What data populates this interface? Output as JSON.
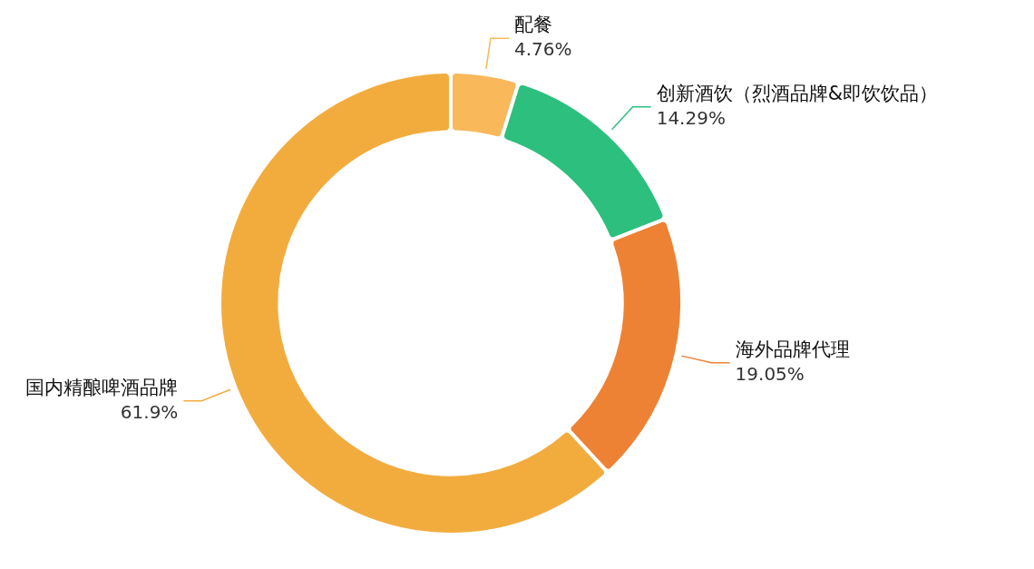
{
  "chart_data": {
    "type": "doughnut",
    "categories": [
      "配餐",
      "创新酒饮（烈酒品牌&即饮饮品）",
      "海外品牌代理",
      "国内精酿啤酒品牌"
    ],
    "values": [
      4.76,
      14.29,
      19.05,
      61.9
    ],
    "value_labels": [
      "4.76%",
      "14.29%",
      "19.05%",
      "61.9%"
    ],
    "colors": [
      "#f9b85a",
      "#2dbf7d",
      "#ee8234",
      "#f2ac3e"
    ],
    "data_labels": true
  }
}
